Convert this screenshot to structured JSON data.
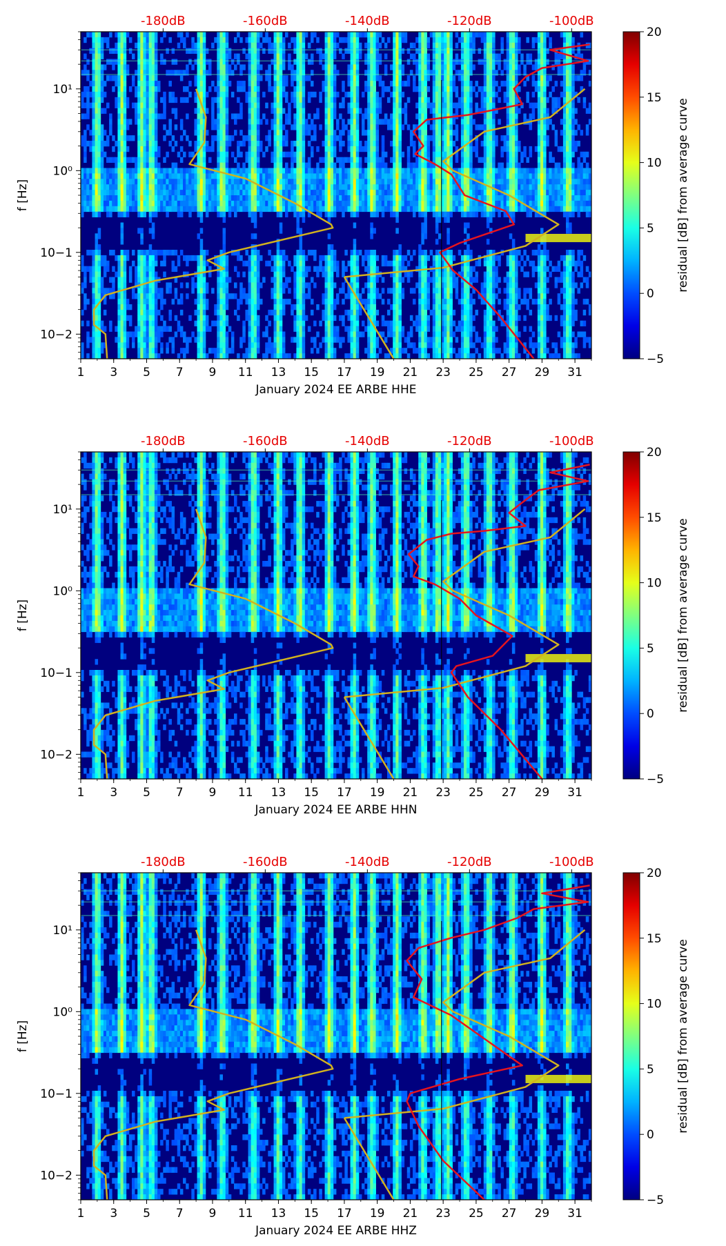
{
  "colors": {
    "noise_model_curve": "#d2b21e",
    "station_curve": "#e6141e",
    "db_top_labels": "#e60000",
    "colormap": "jet",
    "background_dark": "#00007f"
  },
  "chart_data": [
    {
      "type": "heatmap",
      "panel": "HHE",
      "xlabel": "January 2024 EE ARBE  HHE",
      "ylabel": "f [Hz]",
      "x_ticks": [
        "1",
        "3",
        "5",
        "7",
        "9",
        "11",
        "13",
        "15",
        "17",
        "19",
        "21",
        "23",
        "25",
        "27",
        "29",
        "31"
      ],
      "x_range": [
        1,
        32
      ],
      "y_scale": "log",
      "y_range": [
        0.005,
        50
      ],
      "y_ticks": [
        "10−2",
        "10−1",
        "10⁰",
        "10¹"
      ],
      "top_axis_labels": [
        "-180dB",
        "-160dB",
        "-140dB",
        "-120dB",
        "-100dB"
      ],
      "top_axis_positions_day": [
        6.0,
        12.2,
        18.4,
        24.6,
        30.8
      ],
      "colorbar": {
        "label": "residual [dB] from average curve",
        "range": [
          -5,
          20
        ],
        "ticks": [
          "−5",
          "0",
          "5",
          "10",
          "15",
          "20"
        ]
      },
      "bright_days": [
        2.0,
        3.5,
        4.7,
        5.3,
        8.3,
        9.6,
        11.5,
        13.0,
        14.3,
        16.1,
        17.6,
        18.7,
        20.2,
        21.8,
        22.7,
        23.3,
        24.4,
        25.8,
        27.2,
        29.0,
        30.6
      ],
      "microseism_day_ranges": [
        [
          1,
          9
        ],
        [
          25,
          32
        ]
      ],
      "noise_model_curve": [
        {
          "day": 8.0,
          "f": 10
        },
        {
          "day": 8.6,
          "f": 4.5
        },
        {
          "day": 8.5,
          "f": 2.2
        },
        {
          "day": 7.6,
          "f": 1.2
        },
        {
          "day": 11.0,
          "f": 0.8
        },
        {
          "day": 14.0,
          "f": 0.4
        },
        {
          "day": 16.2,
          "f": 0.22
        },
        {
          "day": 16.3,
          "f": 0.2
        },
        {
          "day": 10.0,
          "f": 0.1
        },
        {
          "day": 8.7,
          "f": 0.08
        },
        {
          "day": 9.7,
          "f": 0.063
        },
        {
          "day": 5.5,
          "f": 0.045
        },
        {
          "day": 2.5,
          "f": 0.03
        },
        {
          "day": 1.8,
          "f": 0.02
        },
        {
          "day": 1.8,
          "f": 0.013
        },
        {
          "day": 2.5,
          "f": 0.01
        },
        {
          "day": 2.6,
          "f": 0.005
        }
      ],
      "noise_model_curve_high": [
        {
          "day": 17.0,
          "f": 0.05
        },
        {
          "day": 23.0,
          "f": 0.065
        },
        {
          "day": 28.0,
          "f": 0.12
        },
        {
          "day": 30.0,
          "f": 0.22
        },
        {
          "day": 27.0,
          "f": 0.5
        },
        {
          "day": 23.6,
          "f": 1.0
        },
        {
          "day": 23.0,
          "f": 1.3
        },
        {
          "day": 25.5,
          "f": 3.0
        },
        {
          "day": 29.5,
          "f": 4.5
        },
        {
          "day": 31.6,
          "f": 10
        }
      ],
      "noise_model_curve_tail": [
        {
          "day": 17.0,
          "f": 0.05
        },
        {
          "day": 20.0,
          "f": 0.005
        }
      ],
      "station_curve": [
        {
          "day": 31.9,
          "f": 35
        },
        {
          "day": 29.5,
          "f": 30
        },
        {
          "day": 31.8,
          "f": 22
        },
        {
          "day": 29.0,
          "f": 18
        },
        {
          "day": 28.0,
          "f": 14
        },
        {
          "day": 27.3,
          "f": 10
        },
        {
          "day": 27.8,
          "f": 6.5
        },
        {
          "day": 26.0,
          "f": 5.5
        },
        {
          "day": 24.5,
          "f": 4.8
        },
        {
          "day": 22.0,
          "f": 4.2
        },
        {
          "day": 21.2,
          "f": 3.0
        },
        {
          "day": 21.8,
          "f": 2.0
        },
        {
          "day": 21.3,
          "f": 1.6
        },
        {
          "day": 22.5,
          "f": 1.2
        },
        {
          "day": 23.5,
          "f": 0.9
        },
        {
          "day": 24.3,
          "f": 0.5
        },
        {
          "day": 26.8,
          "f": 0.32
        },
        {
          "day": 27.3,
          "f": 0.22
        },
        {
          "day": 24.0,
          "f": 0.13
        },
        {
          "day": 22.8,
          "f": 0.1
        },
        {
          "day": 23.6,
          "f": 0.06
        },
        {
          "day": 25.0,
          "f": 0.035
        },
        {
          "day": 26.5,
          "f": 0.016
        },
        {
          "day": 28.5,
          "f": 0.005
        }
      ]
    },
    {
      "type": "heatmap",
      "panel": "HHN",
      "xlabel": "January 2024 EE ARBE  HHN",
      "ylabel": "f [Hz]",
      "x_ticks": [
        "1",
        "3",
        "5",
        "7",
        "9",
        "11",
        "13",
        "15",
        "17",
        "19",
        "21",
        "23",
        "25",
        "27",
        "29",
        "31"
      ],
      "x_range": [
        1,
        32
      ],
      "y_scale": "log",
      "y_range": [
        0.005,
        50
      ],
      "y_ticks": [
        "10−2",
        "10−1",
        "10⁰",
        "10¹"
      ],
      "top_axis_labels": [
        "-180dB",
        "-160dB",
        "-140dB",
        "-120dB",
        "-100dB"
      ],
      "top_axis_positions_day": [
        6.0,
        12.2,
        18.4,
        24.6,
        30.8
      ],
      "colorbar": {
        "label": "residual [dB] from average curve",
        "range": [
          -5,
          20
        ],
        "ticks": [
          "−5",
          "0",
          "5",
          "10",
          "15",
          "20"
        ]
      },
      "bright_days": [
        2.0,
        3.5,
        4.7,
        5.3,
        8.3,
        9.6,
        11.5,
        13.0,
        14.3,
        16.1,
        17.6,
        18.7,
        20.2,
        21.8,
        22.7,
        23.3,
        24.4,
        25.8,
        27.2,
        29.0,
        30.6
      ],
      "microseism_day_ranges": [
        [
          1,
          9
        ],
        [
          25,
          32
        ]
      ],
      "noise_model_curve": [
        {
          "day": 8.0,
          "f": 10
        },
        {
          "day": 8.6,
          "f": 4.5
        },
        {
          "day": 8.5,
          "f": 2.2
        },
        {
          "day": 7.6,
          "f": 1.2
        },
        {
          "day": 11.0,
          "f": 0.8
        },
        {
          "day": 14.0,
          "f": 0.4
        },
        {
          "day": 16.2,
          "f": 0.22
        },
        {
          "day": 16.3,
          "f": 0.2
        },
        {
          "day": 10.0,
          "f": 0.1
        },
        {
          "day": 8.7,
          "f": 0.08
        },
        {
          "day": 9.7,
          "f": 0.063
        },
        {
          "day": 5.5,
          "f": 0.045
        },
        {
          "day": 2.5,
          "f": 0.03
        },
        {
          "day": 1.8,
          "f": 0.02
        },
        {
          "day": 1.8,
          "f": 0.013
        },
        {
          "day": 2.5,
          "f": 0.01
        },
        {
          "day": 2.6,
          "f": 0.005
        }
      ],
      "noise_model_curve_high": [
        {
          "day": 17.0,
          "f": 0.05
        },
        {
          "day": 23.0,
          "f": 0.065
        },
        {
          "day": 28.0,
          "f": 0.12
        },
        {
          "day": 30.0,
          "f": 0.22
        },
        {
          "day": 27.0,
          "f": 0.5
        },
        {
          "day": 23.6,
          "f": 1.0
        },
        {
          "day": 23.0,
          "f": 1.3
        },
        {
          "day": 25.5,
          "f": 3.0
        },
        {
          "day": 29.5,
          "f": 4.5
        },
        {
          "day": 31.6,
          "f": 10
        }
      ],
      "noise_model_curve_tail": [
        {
          "day": 17.0,
          "f": 0.05
        },
        {
          "day": 20.0,
          "f": 0.005
        }
      ],
      "station_curve": [
        {
          "day": 31.9,
          "f": 35
        },
        {
          "day": 29.5,
          "f": 28
        },
        {
          "day": 31.8,
          "f": 22
        },
        {
          "day": 28.8,
          "f": 17
        },
        {
          "day": 27.8,
          "f": 12
        },
        {
          "day": 27.0,
          "f": 9
        },
        {
          "day": 28.0,
          "f": 6.2
        },
        {
          "day": 25.5,
          "f": 5.4
        },
        {
          "day": 23.5,
          "f": 5.0
        },
        {
          "day": 22.0,
          "f": 4.2
        },
        {
          "day": 20.9,
          "f": 2.8
        },
        {
          "day": 21.5,
          "f": 2.0
        },
        {
          "day": 21.2,
          "f": 1.5
        },
        {
          "day": 22.5,
          "f": 1.2
        },
        {
          "day": 24.0,
          "f": 0.8
        },
        {
          "day": 25.0,
          "f": 0.5
        },
        {
          "day": 27.2,
          "f": 0.28
        },
        {
          "day": 26.0,
          "f": 0.16
        },
        {
          "day": 23.8,
          "f": 0.12
        },
        {
          "day": 23.5,
          "f": 0.1
        },
        {
          "day": 24.5,
          "f": 0.05
        },
        {
          "day": 26.5,
          "f": 0.02
        },
        {
          "day": 29.0,
          "f": 0.005
        }
      ]
    },
    {
      "type": "heatmap",
      "panel": "HHZ",
      "xlabel": "January 2024 EE ARBE  HHZ",
      "ylabel": "f [Hz]",
      "x_ticks": [
        "1",
        "3",
        "5",
        "7",
        "9",
        "11",
        "13",
        "15",
        "17",
        "19",
        "21",
        "23",
        "25",
        "27",
        "29",
        "31"
      ],
      "x_range": [
        1,
        32
      ],
      "y_scale": "log",
      "y_range": [
        0.005,
        50
      ],
      "y_ticks": [
        "10−2",
        "10−1",
        "10⁰",
        "10¹"
      ],
      "top_axis_labels": [
        "-180dB",
        "-160dB",
        "-140dB",
        "-120dB",
        "-100dB"
      ],
      "top_axis_positions_day": [
        6.0,
        12.2,
        18.4,
        24.6,
        30.8
      ],
      "colorbar": {
        "label": "residual [dB] from average curve",
        "range": [
          -5,
          20
        ],
        "ticks": [
          "−5",
          "0",
          "5",
          "10",
          "15",
          "20"
        ]
      },
      "bright_days": [
        2.0,
        3.5,
        4.7,
        5.3,
        8.3,
        9.6,
        11.5,
        13.0,
        14.3,
        16.1,
        17.6,
        18.7,
        20.2,
        21.8,
        22.7,
        23.3,
        24.4,
        25.8,
        27.2,
        29.0,
        30.6
      ],
      "microseism_day_ranges": [
        [
          1,
          9
        ],
        [
          25,
          32
        ]
      ],
      "noise_model_curve": [
        {
          "day": 8.0,
          "f": 10
        },
        {
          "day": 8.6,
          "f": 4.5
        },
        {
          "day": 8.5,
          "f": 2.2
        },
        {
          "day": 7.6,
          "f": 1.2
        },
        {
          "day": 11.0,
          "f": 0.8
        },
        {
          "day": 14.0,
          "f": 0.4
        },
        {
          "day": 16.2,
          "f": 0.22
        },
        {
          "day": 16.3,
          "f": 0.2
        },
        {
          "day": 10.0,
          "f": 0.1
        },
        {
          "day": 8.7,
          "f": 0.08
        },
        {
          "day": 9.7,
          "f": 0.063
        },
        {
          "day": 5.5,
          "f": 0.045
        },
        {
          "day": 2.5,
          "f": 0.03
        },
        {
          "day": 1.8,
          "f": 0.02
        },
        {
          "day": 1.8,
          "f": 0.013
        },
        {
          "day": 2.5,
          "f": 0.01
        },
        {
          "day": 2.6,
          "f": 0.005
        }
      ],
      "noise_model_curve_high": [
        {
          "day": 17.0,
          "f": 0.05
        },
        {
          "day": 23.0,
          "f": 0.065
        },
        {
          "day": 28.0,
          "f": 0.12
        },
        {
          "day": 30.0,
          "f": 0.22
        },
        {
          "day": 27.0,
          "f": 0.5
        },
        {
          "day": 23.6,
          "f": 1.0
        },
        {
          "day": 23.0,
          "f": 1.3
        },
        {
          "day": 25.5,
          "f": 3.0
        },
        {
          "day": 29.5,
          "f": 4.5
        },
        {
          "day": 31.6,
          "f": 10
        }
      ],
      "noise_model_curve_tail": [
        {
          "day": 17.0,
          "f": 0.05
        },
        {
          "day": 20.0,
          "f": 0.005
        }
      ],
      "station_curve": [
        {
          "day": 31.9,
          "f": 35
        },
        {
          "day": 29.0,
          "f": 28
        },
        {
          "day": 31.8,
          "f": 22
        },
        {
          "day": 28.5,
          "f": 18
        },
        {
          "day": 27.5,
          "f": 14
        },
        {
          "day": 25.5,
          "f": 10
        },
        {
          "day": 23.5,
          "f": 8
        },
        {
          "day": 21.5,
          "f": 6
        },
        {
          "day": 20.8,
          "f": 4.2
        },
        {
          "day": 21.7,
          "f": 2.5
        },
        {
          "day": 21.2,
          "f": 1.5
        },
        {
          "day": 22.2,
          "f": 1.2
        },
        {
          "day": 23.5,
          "f": 0.9
        },
        {
          "day": 25.0,
          "f": 0.55
        },
        {
          "day": 27.8,
          "f": 0.22
        },
        {
          "day": 24.0,
          "f": 0.15
        },
        {
          "day": 21.0,
          "f": 0.1
        },
        {
          "day": 20.8,
          "f": 0.08
        },
        {
          "day": 21.5,
          "f": 0.04
        },
        {
          "day": 23.0,
          "f": 0.015
        },
        {
          "day": 25.5,
          "f": 0.005
        }
      ]
    }
  ]
}
